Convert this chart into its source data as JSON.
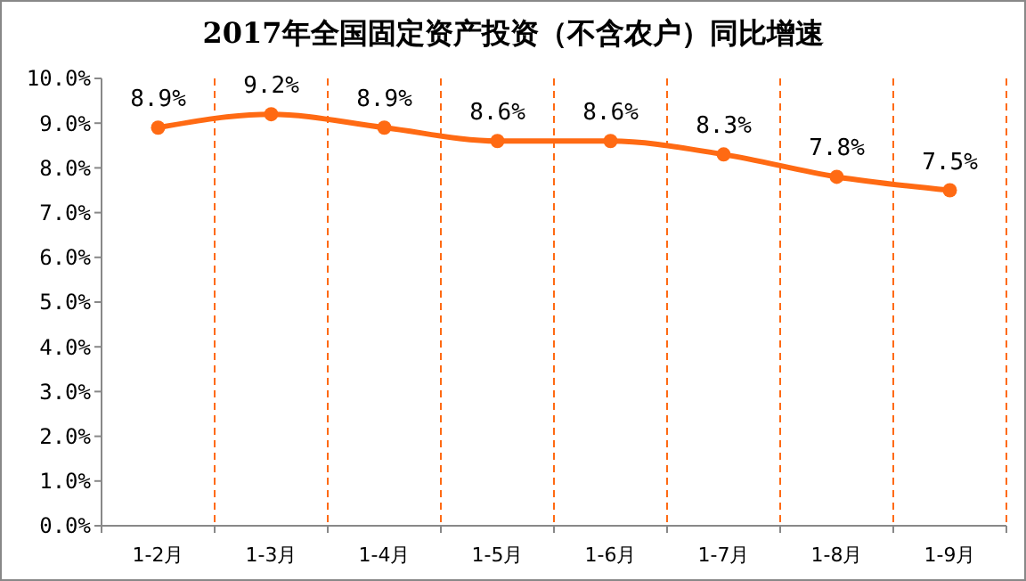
{
  "chart_data": {
    "type": "line",
    "title": "2017年全国固定资产投资（不含农户）同比增速",
    "categories": [
      "1-2月",
      "1-3月",
      "1-4月",
      "1-5月",
      "1-6月",
      "1-7月",
      "1-8月",
      "1-9月"
    ],
    "series": [
      {
        "color": "#ff6a13",
        "values": [
          8.9,
          9.2,
          8.9,
          8.6,
          8.6,
          8.3,
          7.8,
          7.5
        ],
        "value_labels": [
          "8.9%",
          "9.2%",
          "8.9%",
          "8.6%",
          "8.6%",
          "8.3%",
          "7.8%",
          "7.5%"
        ]
      }
    ],
    "ylim": [
      0,
      10
    ],
    "yticks": [
      {
        "value": 0,
        "label": "0.0%"
      },
      {
        "value": 1,
        "label": "1.0%"
      },
      {
        "value": 2,
        "label": "2.0%"
      },
      {
        "value": 3,
        "label": "3.0%"
      },
      {
        "value": 4,
        "label": "4.0%"
      },
      {
        "value": 5,
        "label": "5.0%"
      },
      {
        "value": 6,
        "label": "6.0%"
      },
      {
        "value": 7,
        "label": "7.0%"
      },
      {
        "value": 8,
        "label": "8.0%"
      },
      {
        "value": 9,
        "label": "9.0%"
      },
      {
        "value": 10,
        "label": "10.0%"
      }
    ],
    "grid": "x",
    "marker": "circle",
    "line_style": "solid"
  }
}
